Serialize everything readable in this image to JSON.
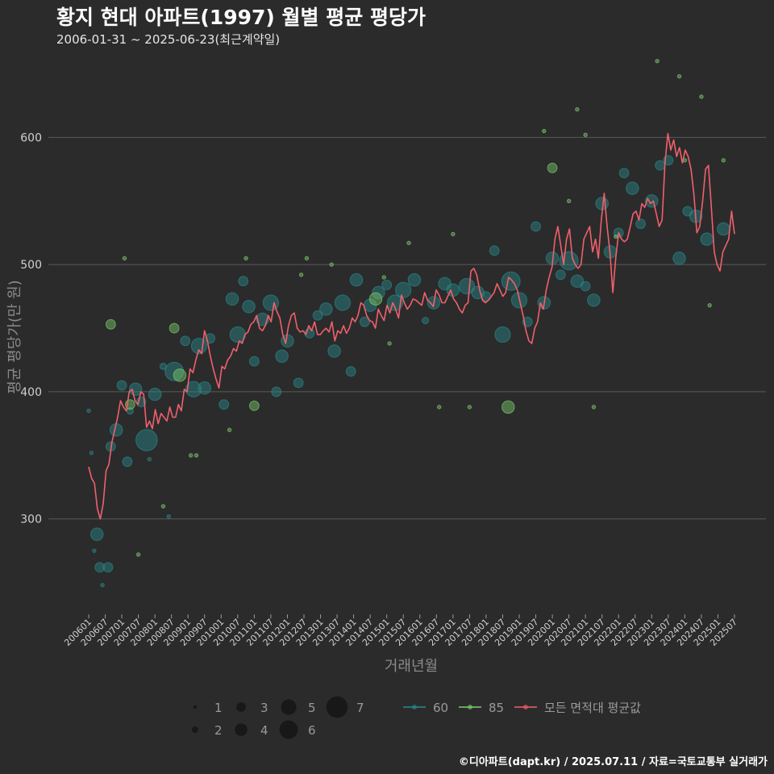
{
  "title": "황지 현대 아파트(1997) 월별 평균 평당가",
  "subtitle": "2006-01-31 ~ 2025-06-23(최근계약일)",
  "caption": "©디아파트(dapt.kr) / 2025.07.11 / 자료=국토교통부 실거래가",
  "colors": {
    "background": "#2b2b2c",
    "grid": "#5a5a5a",
    "series_60": "#2a8a8a",
    "series_85": "#7ccf6a",
    "average_line": "#f0606a"
  },
  "chart_data": {
    "type": "scatter",
    "xlabel": "거래년월",
    "ylabel": "평균 평당가(만 원)",
    "ylim": [
      225,
      670
    ],
    "yticks": [
      300,
      400,
      500,
      600
    ],
    "x_start": "200601",
    "x_end": "202507",
    "xtick_labels": [
      "200601",
      "200607",
      "200701",
      "200707",
      "200801",
      "200807",
      "200901",
      "200907",
      "201001",
      "201007",
      "201101",
      "201107",
      "201201",
      "201207",
      "201301",
      "201307",
      "201401",
      "201407",
      "201501",
      "201507",
      "201601",
      "201607",
      "201701",
      "201707",
      "201801",
      "201807",
      "201901",
      "201907",
      "202001",
      "202007",
      "202101",
      "202107",
      "202201",
      "202207",
      "202301",
      "202307",
      "202401",
      "202407",
      "202501",
      "202507"
    ],
    "grid": true,
    "legend_position": "bottom",
    "size_legend": {
      "title": "",
      "values": [
        1,
        2,
        3,
        4,
        5,
        6,
        7
      ]
    },
    "series": [
      {
        "name": "60",
        "color": "#2a8a8a",
        "points": [
          {
            "x": "200601",
            "y": 385,
            "n": 1
          },
          {
            "x": "200602",
            "y": 352,
            "n": 1
          },
          {
            "x": "200603",
            "y": 275,
            "n": 1
          },
          {
            "x": "200604",
            "y": 288,
            "n": 4
          },
          {
            "x": "200605",
            "y": 262,
            "n": 3
          },
          {
            "x": "200606",
            "y": 248,
            "n": 1
          },
          {
            "x": "200608",
            "y": 262,
            "n": 3
          },
          {
            "x": "200609",
            "y": 357,
            "n": 3
          },
          {
            "x": "200611",
            "y": 370,
            "n": 4
          },
          {
            "x": "200701",
            "y": 405,
            "n": 3
          },
          {
            "x": "200703",
            "y": 345,
            "n": 3
          },
          {
            "x": "200704",
            "y": 385,
            "n": 2
          },
          {
            "x": "200706",
            "y": 402,
            "n": 4
          },
          {
            "x": "200708",
            "y": 392,
            "n": 3
          },
          {
            "x": "200710",
            "y": 362,
            "n": 7
          },
          {
            "x": "200711",
            "y": 347,
            "n": 1
          },
          {
            "x": "200801",
            "y": 398,
            "n": 4
          },
          {
            "x": "200804",
            "y": 420,
            "n": 2
          },
          {
            "x": "200806",
            "y": 302,
            "n": 1
          },
          {
            "x": "200808",
            "y": 416,
            "n": 6
          },
          {
            "x": "200812",
            "y": 440,
            "n": 3
          },
          {
            "x": "200903",
            "y": 402,
            "n": 5
          },
          {
            "x": "200905",
            "y": 436,
            "n": 5
          },
          {
            "x": "200907",
            "y": 403,
            "n": 4
          },
          {
            "x": "200909",
            "y": 442,
            "n": 3
          },
          {
            "x": "201002",
            "y": 390,
            "n": 3
          },
          {
            "x": "201005",
            "y": 473,
            "n": 4
          },
          {
            "x": "201007",
            "y": 445,
            "n": 5
          },
          {
            "x": "201009",
            "y": 487,
            "n": 3
          },
          {
            "x": "201011",
            "y": 467,
            "n": 4
          },
          {
            "x": "201101",
            "y": 424,
            "n": 3
          },
          {
            "x": "201104",
            "y": 457,
            "n": 4
          },
          {
            "x": "201107",
            "y": 470,
            "n": 5
          },
          {
            "x": "201109",
            "y": 400,
            "n": 3
          },
          {
            "x": "201111",
            "y": 428,
            "n": 4
          },
          {
            "x": "201201",
            "y": 440,
            "n": 4
          },
          {
            "x": "201205",
            "y": 407,
            "n": 3
          },
          {
            "x": "201209",
            "y": 446,
            "n": 3
          },
          {
            "x": "201212",
            "y": 460,
            "n": 3
          },
          {
            "x": "201303",
            "y": 465,
            "n": 4
          },
          {
            "x": "201306",
            "y": 432,
            "n": 4
          },
          {
            "x": "201309",
            "y": 470,
            "n": 5
          },
          {
            "x": "201312",
            "y": 416,
            "n": 3
          },
          {
            "x": "201402",
            "y": 488,
            "n": 4
          },
          {
            "x": "201405",
            "y": 455,
            "n": 3
          },
          {
            "x": "201407",
            "y": 468,
            "n": 4
          },
          {
            "x": "201410",
            "y": 478,
            "n": 4
          },
          {
            "x": "201501",
            "y": 484,
            "n": 3
          },
          {
            "x": "201504",
            "y": 470,
            "n": 5
          },
          {
            "x": "201507",
            "y": 480,
            "n": 5
          },
          {
            "x": "201511",
            "y": 488,
            "n": 4
          },
          {
            "x": "201603",
            "y": 456,
            "n": 2
          },
          {
            "x": "201606",
            "y": 470,
            "n": 4
          },
          {
            "x": "201610",
            "y": 485,
            "n": 4
          },
          {
            "x": "201701",
            "y": 480,
            "n": 4
          },
          {
            "x": "201706",
            "y": 483,
            "n": 5
          },
          {
            "x": "201710",
            "y": 478,
            "n": 4
          },
          {
            "x": "201801",
            "y": 475,
            "n": 3
          },
          {
            "x": "201804",
            "y": 511,
            "n": 3
          },
          {
            "x": "201807",
            "y": 445,
            "n": 5
          },
          {
            "x": "201810",
            "y": 487,
            "n": 6
          },
          {
            "x": "201901",
            "y": 472,
            "n": 5
          },
          {
            "x": "201904",
            "y": 455,
            "n": 3
          },
          {
            "x": "201907",
            "y": 530,
            "n": 3
          },
          {
            "x": "201910",
            "y": 470,
            "n": 4
          },
          {
            "x": "202001",
            "y": 505,
            "n": 4
          },
          {
            "x": "202004",
            "y": 492,
            "n": 3
          },
          {
            "x": "202007",
            "y": 503,
            "n": 6
          },
          {
            "x": "202010",
            "y": 487,
            "n": 4
          },
          {
            "x": "202101",
            "y": 483,
            "n": 3
          },
          {
            "x": "202104",
            "y": 472,
            "n": 4
          },
          {
            "x": "202107",
            "y": 548,
            "n": 4
          },
          {
            "x": "202110",
            "y": 510,
            "n": 4
          },
          {
            "x": "202201",
            "y": 525,
            "n": 3
          },
          {
            "x": "202203",
            "y": 572,
            "n": 3
          },
          {
            "x": "202206",
            "y": 560,
            "n": 4
          },
          {
            "x": "202209",
            "y": 532,
            "n": 3
          },
          {
            "x": "202301",
            "y": 550,
            "n": 4
          },
          {
            "x": "202304",
            "y": 578,
            "n": 3
          },
          {
            "x": "202307",
            "y": 582,
            "n": 3
          },
          {
            "x": "202311",
            "y": 505,
            "n": 4
          },
          {
            "x": "202402",
            "y": 542,
            "n": 3
          },
          {
            "x": "202405",
            "y": 538,
            "n": 4
          },
          {
            "x": "202409",
            "y": 520,
            "n": 4
          },
          {
            "x": "202503",
            "y": 528,
            "n": 4
          }
        ]
      },
      {
        "name": "85",
        "color": "#7ccf6a",
        "points": [
          {
            "x": "200609",
            "y": 453,
            "n": 3
          },
          {
            "x": "200702",
            "y": 505,
            "n": 1
          },
          {
            "x": "200704",
            "y": 390,
            "n": 3
          },
          {
            "x": "200707",
            "y": 272,
            "n": 1
          },
          {
            "x": "200804",
            "y": 310,
            "n": 1
          },
          {
            "x": "200808",
            "y": 450,
            "n": 3
          },
          {
            "x": "200810",
            "y": 413,
            "n": 4
          },
          {
            "x": "200902",
            "y": 350,
            "n": 1
          },
          {
            "x": "200904",
            "y": 350,
            "n": 1
          },
          {
            "x": "201004",
            "y": 370,
            "n": 1
          },
          {
            "x": "201010",
            "y": 505,
            "n": 1
          },
          {
            "x": "201101",
            "y": 389,
            "n": 3
          },
          {
            "x": "201206",
            "y": 492,
            "n": 1
          },
          {
            "x": "201208",
            "y": 505,
            "n": 1
          },
          {
            "x": "201305",
            "y": 500,
            "n": 1
          },
          {
            "x": "201409",
            "y": 473,
            "n": 4
          },
          {
            "x": "201412",
            "y": 490,
            "n": 1
          },
          {
            "x": "201502",
            "y": 438,
            "n": 1
          },
          {
            "x": "201509",
            "y": 517,
            "n": 1
          },
          {
            "x": "201608",
            "y": 388,
            "n": 1
          },
          {
            "x": "201701",
            "y": 524,
            "n": 1
          },
          {
            "x": "201707",
            "y": 388,
            "n": 1
          },
          {
            "x": "201809",
            "y": 388,
            "n": 4
          },
          {
            "x": "201910",
            "y": 605,
            "n": 1
          },
          {
            "x": "202001",
            "y": 576,
            "n": 3
          },
          {
            "x": "202007",
            "y": 550,
            "n": 1
          },
          {
            "x": "202010",
            "y": 622,
            "n": 1
          },
          {
            "x": "202101",
            "y": 602,
            "n": 1
          },
          {
            "x": "202104",
            "y": 388,
            "n": 1
          },
          {
            "x": "202112",
            "y": 522,
            "n": 1
          },
          {
            "x": "202303",
            "y": 660,
            "n": 1
          },
          {
            "x": "202311",
            "y": 648,
            "n": 1
          },
          {
            "x": "202401",
            "y": 582,
            "n": 1
          },
          {
            "x": "202407",
            "y": 632,
            "n": 1
          },
          {
            "x": "202410",
            "y": 468,
            "n": 1
          },
          {
            "x": "202503",
            "y": 582,
            "n": 1
          }
        ]
      }
    ],
    "average_series": {
      "name": "모든 면적대 평균값",
      "color": "#f0606a",
      "values": [
        341,
        332,
        328,
        308,
        300,
        312,
        338,
        343,
        360,
        370,
        380,
        393,
        388,
        385,
        400,
        402,
        393,
        390,
        400,
        398,
        372,
        377,
        371,
        386,
        375,
        383,
        380,
        377,
        388,
        380,
        380,
        390,
        385,
        402,
        400,
        418,
        415,
        425,
        433,
        430,
        448,
        440,
        428,
        418,
        410,
        403,
        420,
        418,
        425,
        428,
        434,
        432,
        440,
        438,
        445,
        447,
        453,
        455,
        460,
        450,
        448,
        452,
        460,
        455,
        470,
        463,
        458,
        445,
        438,
        452,
        460,
        462,
        450,
        447,
        448,
        445,
        452,
        448,
        455,
        445,
        445,
        448,
        450,
        447,
        455,
        440,
        448,
        446,
        452,
        446,
        450,
        458,
        455,
        460,
        470,
        468,
        460,
        456,
        455,
        450,
        465,
        460,
        456,
        468,
        462,
        470,
        465,
        458,
        476,
        470,
        465,
        468,
        473,
        472,
        470,
        468,
        478,
        472,
        470,
        467,
        480,
        476,
        470,
        470,
        475,
        480,
        473,
        470,
        465,
        462,
        468,
        470,
        495,
        497,
        492,
        480,
        472,
        470,
        472,
        475,
        478,
        485,
        480,
        475,
        478,
        490,
        488,
        485,
        480,
        470,
        460,
        448,
        440,
        438,
        450,
        455,
        470,
        465,
        480,
        490,
        498,
        520,
        530,
        515,
        500,
        520,
        528,
        505,
        500,
        497,
        500,
        520,
        525,
        530,
        510,
        520,
        505,
        535,
        556,
        530,
        510,
        478,
        505,
        525,
        520,
        518,
        520,
        530,
        540,
        542,
        535,
        548,
        545,
        552,
        548,
        550,
        540,
        530,
        535,
        580,
        603,
        590,
        598,
        585,
        592,
        580,
        590,
        585,
        575,
        555,
        525,
        530,
        550,
        575,
        578,
        545,
        510,
        500,
        495,
        510,
        515,
        520,
        542,
        524
      ]
    }
  }
}
